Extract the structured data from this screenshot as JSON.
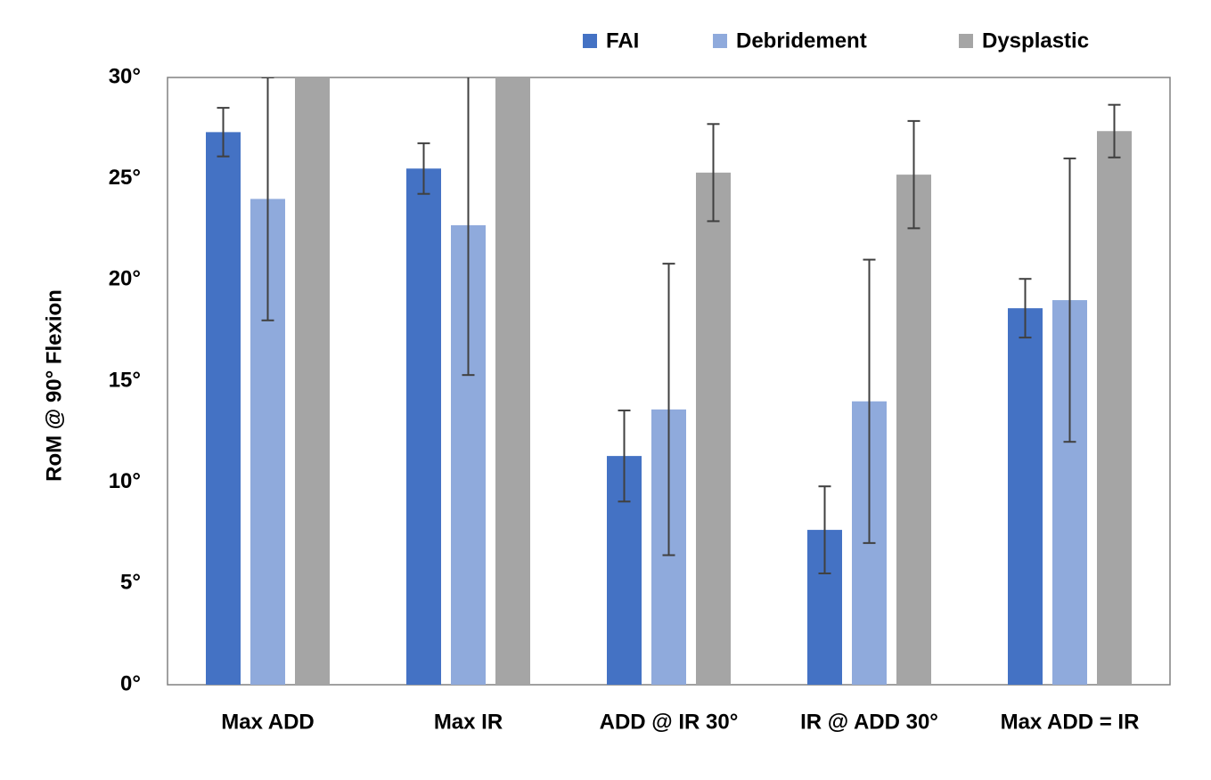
{
  "chart_data": {
    "type": "bar",
    "y_label": "RoM @ 90° Flexion",
    "categories": [
      "Max ADD",
      "Max IR",
      "ADD @ IR 30°",
      "IR @ ADD 30°",
      "Max ADD = IR"
    ],
    "series": [
      {
        "name": "FAI",
        "color": "#4472c4",
        "values": [
          27.3,
          25.5,
          11.3,
          7.65,
          18.6
        ],
        "errors": [
          1.2,
          1.25,
          2.25,
          2.15,
          1.45
        ]
      },
      {
        "name": "Debridement",
        "color": "#8faadc",
        "values": [
          24.0,
          22.7,
          13.6,
          14.0,
          19.0
        ],
        "errors": [
          6.0,
          7.4,
          7.2,
          7.0,
          7.0
        ]
      },
      {
        "name": "Dysplastic",
        "color": "#a5a5a5",
        "values": [
          30,
          30,
          25.3,
          25.2,
          27.35
        ],
        "errors": [
          null,
          null,
          2.4,
          2.65,
          1.3
        ]
      }
    ],
    "ylim": [
      0,
      30
    ],
    "yticks": [
      {
        "value": 0,
        "label": "0°"
      },
      {
        "value": 5,
        "label": "5°"
      },
      {
        "value": 10,
        "label": "10°"
      },
      {
        "value": 15,
        "label": "15°"
      },
      {
        "value": 20,
        "label": "20°"
      },
      {
        "value": 25,
        "label": "25°"
      },
      {
        "value": 30,
        "label": "30°"
      }
    ],
    "grid": false
  }
}
